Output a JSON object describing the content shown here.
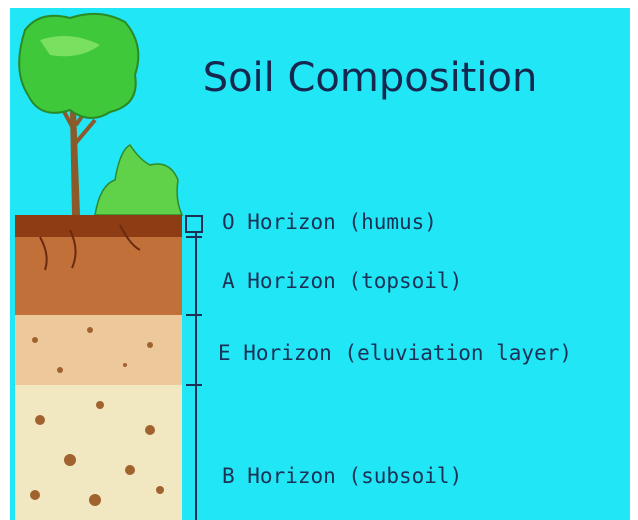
{
  "title": "Soil Composition",
  "layers": [
    {
      "label": "O Horizon (humus)"
    },
    {
      "label": "A Horizon (topsoil)"
    },
    {
      "label": "E Horizon (eluviation layer)"
    },
    {
      "label": "B Horizon (subsoil)"
    }
  ]
}
